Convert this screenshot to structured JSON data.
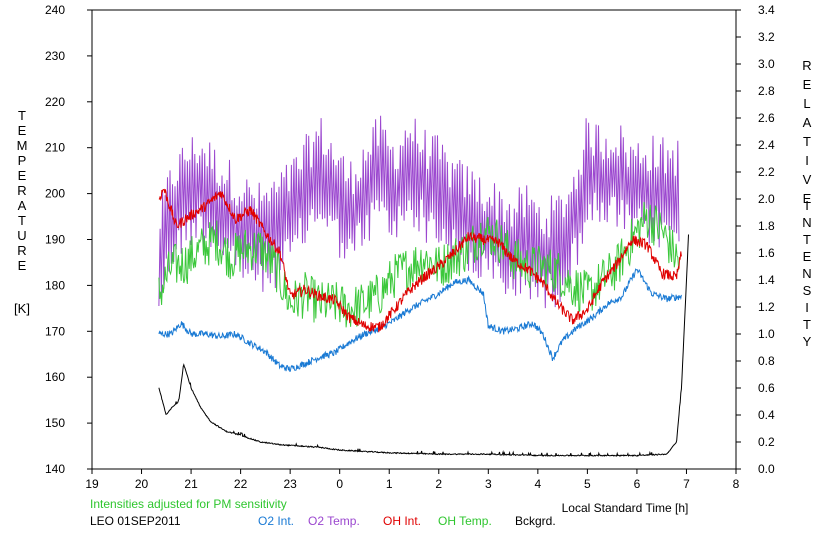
{
  "chart_data": {
    "type": "line",
    "left_axis_title_letters": [
      "T",
      "E",
      "M",
      "P",
      "E",
      "R",
      "A",
      "T",
      "U",
      "R",
      "E"
    ],
    "left_axis_unit": "[K]",
    "right_axis_title_1_letters": [
      "R",
      "E",
      "L",
      "A",
      "T",
      "I",
      "V",
      "E"
    ],
    "right_axis_title_2_letters": [
      "I",
      "N",
      "T",
      "E",
      "N",
      "S",
      "I",
      "T",
      "Y"
    ],
    "xlabel": "Local Standard Time [h]",
    "x_tick_labels": [
      "19",
      "20",
      "21",
      "22",
      "23",
      "0",
      "1",
      "2",
      "3",
      "4",
      "5",
      "6",
      "7",
      "8"
    ],
    "x_range": [
      19,
      32
    ],
    "y_left_range": [
      140,
      240
    ],
    "y_left_ticks": [
      "140",
      "150",
      "160",
      "170",
      "180",
      "190",
      "200",
      "210",
      "220",
      "230",
      "240"
    ],
    "y_right_range": [
      0.0,
      3.4
    ],
    "y_right_ticks": [
      "0.0",
      "0.2",
      "0.4",
      "0.6",
      "0.8",
      "1.0",
      "1.2",
      "1.4",
      "1.6",
      "1.8",
      "2.0",
      "2.2",
      "2.4",
      "2.6",
      "2.8",
      "3.0",
      "3.2",
      "3.4"
    ],
    "note": "Intensities adjusted for PM sensitivity",
    "station": "LEO 01SEP2011",
    "legend_placement": "bottom",
    "grid": false,
    "series": [
      {
        "name": "O2 Int.",
        "color": "#1a7ad4",
        "axis": "right",
        "x": [
          20.35,
          20.6,
          20.8,
          21.0,
          21.3,
          21.6,
          21.9,
          22.2,
          22.5,
          22.8,
          23.0,
          23.3,
          23.6,
          23.9,
          24.2,
          24.5,
          24.8,
          25.1,
          25.4,
          25.7,
          26.0,
          26.3,
          26.6,
          26.9,
          27.0,
          27.3,
          27.6,
          27.9,
          28.1,
          28.3,
          28.5,
          28.8,
          29.1,
          29.4,
          29.7,
          30.0,
          30.3,
          30.6,
          30.9
        ],
        "y": [
          1.0,
          1.0,
          1.08,
          1.0,
          1.0,
          0.98,
          1.0,
          0.93,
          0.87,
          0.76,
          0.74,
          0.78,
          0.83,
          0.86,
          0.94,
          1.0,
          1.04,
          1.1,
          1.18,
          1.24,
          1.3,
          1.38,
          1.4,
          1.3,
          1.06,
          1.02,
          1.04,
          1.08,
          1.0,
          0.82,
          0.95,
          1.05,
          1.12,
          1.22,
          1.28,
          1.48,
          1.3,
          1.26,
          1.28
        ]
      },
      {
        "name": "O2 Temp.",
        "color": "#9b47cf",
        "axis": "left",
        "x": [
          20.35,
          20.6,
          20.9,
          21.2,
          21.5,
          21.8,
          22.1,
          22.4,
          22.7,
          23.0,
          23.3,
          23.6,
          23.9,
          24.2,
          24.5,
          24.8,
          25.1,
          25.4,
          25.7,
          26.0,
          26.3,
          26.6,
          26.9,
          27.2,
          27.5,
          27.8,
          28.1,
          28.4,
          28.7,
          29.0,
          29.3,
          29.6,
          29.9,
          30.2,
          30.5,
          30.85
        ],
        "y": [
          185,
          195,
          200,
          202,
          198,
          195,
          192,
          190,
          192,
          195,
          200,
          205,
          200,
          195,
          200,
          205,
          200,
          206,
          202,
          200,
          196,
          194,
          192,
          190,
          188,
          190,
          186,
          188,
          193,
          205,
          203,
          204,
          200,
          201,
          200,
          200
        ]
      },
      {
        "name": "OH Int.",
        "color": "#e00000",
        "axis": "right",
        "x": [
          20.35,
          20.45,
          20.7,
          21.0,
          21.3,
          21.6,
          21.9,
          22.2,
          22.5,
          22.8,
          23.0,
          23.3,
          23.6,
          23.9,
          24.2,
          24.5,
          24.8,
          25.1,
          25.4,
          25.7,
          26.0,
          26.3,
          26.6,
          26.9,
          27.2,
          27.5,
          27.8,
          28.1,
          28.4,
          28.7,
          29.0,
          29.3,
          29.6,
          29.9,
          30.2,
          30.5,
          30.8,
          30.9
        ],
        "y": [
          2.0,
          2.08,
          1.8,
          1.88,
          1.95,
          2.05,
          1.85,
          1.92,
          1.75,
          1.6,
          1.28,
          1.33,
          1.28,
          1.25,
          1.12,
          1.06,
          1.05,
          1.18,
          1.32,
          1.42,
          1.5,
          1.6,
          1.72,
          1.7,
          1.68,
          1.55,
          1.48,
          1.38,
          1.22,
          1.1,
          1.18,
          1.38,
          1.52,
          1.7,
          1.66,
          1.45,
          1.42,
          1.6
        ]
      },
      {
        "name": "OH Temp.",
        "color": "#3cc83c",
        "axis": "left",
        "x": [
          20.35,
          20.6,
          20.9,
          21.2,
          21.5,
          21.8,
          22.1,
          22.4,
          22.7,
          23.0,
          23.3,
          23.6,
          23.9,
          24.2,
          24.5,
          24.8,
          25.1,
          25.4,
          25.7,
          26.0,
          26.3,
          26.6,
          26.9,
          27.2,
          27.5,
          27.8,
          28.1,
          28.4,
          28.7,
          29.0,
          29.3,
          29.6,
          29.9,
          30.2,
          30.5,
          30.85
        ],
        "y": [
          178,
          184,
          185,
          188,
          190,
          186,
          188,
          188,
          184,
          176,
          178,
          176,
          176,
          175,
          176,
          178,
          182,
          184,
          186,
          184,
          186,
          188,
          192,
          190,
          186,
          184,
          184,
          183,
          180,
          178,
          181,
          184,
          190,
          195,
          192,
          185
        ]
      },
      {
        "name": "Bckgrd.",
        "color": "#000000",
        "axis": "right",
        "x": [
          20.35,
          20.5,
          20.6,
          20.75,
          20.85,
          21.0,
          21.2,
          21.4,
          21.7,
          22.0,
          22.4,
          22.8,
          23.2,
          23.6,
          24.0,
          25.0,
          26.0,
          27.0,
          28.0,
          29.0,
          30.0,
          30.6,
          30.8,
          30.9,
          31.0,
          31.05
        ],
        "y": [
          0.6,
          0.4,
          0.45,
          0.5,
          0.78,
          0.6,
          0.45,
          0.35,
          0.28,
          0.25,
          0.2,
          0.18,
          0.17,
          0.16,
          0.14,
          0.12,
          0.11,
          0.11,
          0.1,
          0.1,
          0.1,
          0.11,
          0.2,
          0.6,
          1.4,
          1.8
        ]
      }
    ]
  }
}
